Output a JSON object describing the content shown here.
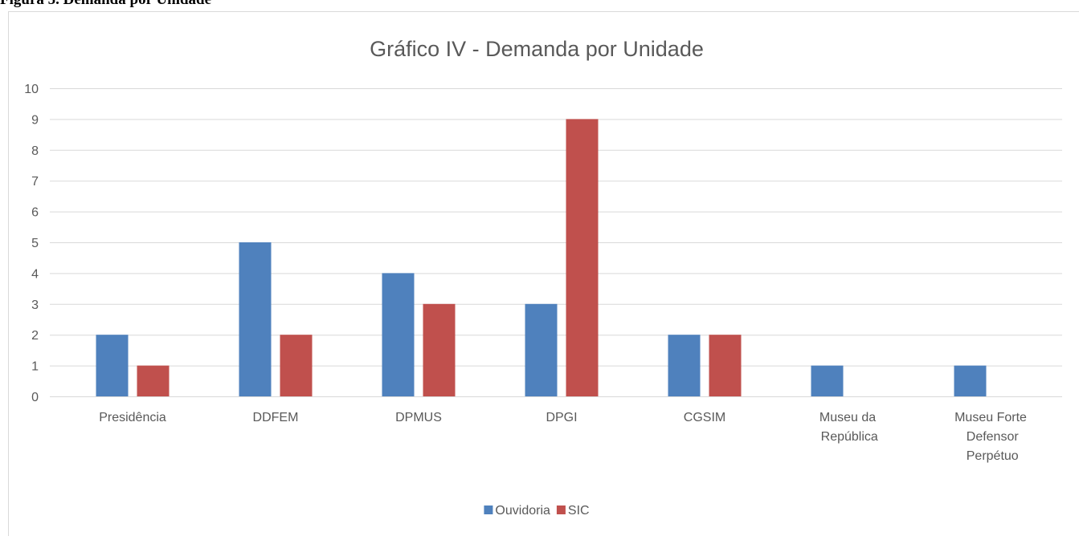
{
  "caption": "Figura 5. Demanda por Unidade",
  "chart_data": {
    "type": "bar",
    "title": "Gráfico IV - Demanda por Unidade",
    "categories": [
      "Presidência",
      "DDFEM",
      "DPMUS",
      "DPGI",
      "CGSIM",
      "Museu da República",
      "Museu Forte Defensor Perpétuo"
    ],
    "series": [
      {
        "name": "Ouvidoria",
        "color": "#4f81bd",
        "values": [
          2,
          5,
          4,
          3,
          2,
          1,
          1
        ]
      },
      {
        "name": "SIC",
        "color": "#c0504d",
        "values": [
          1,
          2,
          3,
          9,
          2,
          null,
          null
        ]
      }
    ],
    "ylim": [
      0,
      10
    ],
    "yticks": [
      0,
      1,
      2,
      3,
      4,
      5,
      6,
      7,
      8,
      9,
      10
    ],
    "grid": true,
    "legend": "bottom"
  }
}
